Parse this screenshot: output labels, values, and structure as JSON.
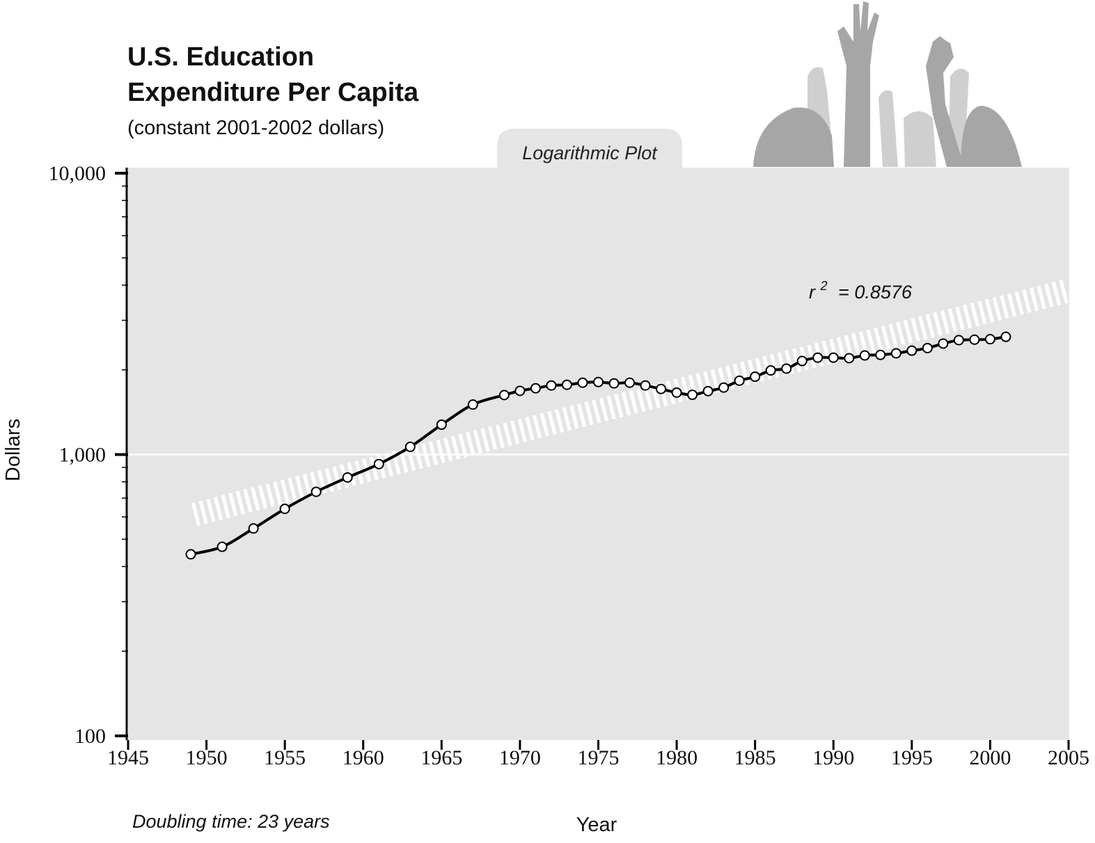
{
  "chart_data": {
    "type": "line",
    "title_line1": "U.S. Education",
    "title_line2": "Expenditure Per Capita",
    "subtitle": "(constant 2001-2002 dollars)",
    "plot_tab_label": "Logarithmic Plot",
    "xlabel": "Year",
    "ylabel": "Dollars",
    "y_scale": "log",
    "xlim": [
      1945,
      2005
    ],
    "ylim": [
      100,
      10000
    ],
    "x_ticks": [
      1945,
      1950,
      1955,
      1960,
      1965,
      1970,
      1975,
      1980,
      1985,
      1990,
      1995,
      2000,
      2005
    ],
    "x_tick_labels": [
      "1945",
      "1950",
      "1955",
      "1960",
      "1965",
      "1970",
      "1975",
      "1980",
      "1985",
      "1990",
      "1995",
      "2000",
      "2005"
    ],
    "y_ticks": [
      100,
      1000,
      10000
    ],
    "y_tick_labels": [
      "100",
      "1,000",
      "10,000"
    ],
    "gridline_at": 1000,
    "annotation": "= 0.8576",
    "annotation_prefix": "r",
    "annotation_sup": "2",
    "footnote": "Doubling time: 23 years",
    "colors": {
      "plot_background": "#e5e5e5",
      "line": "#000000",
      "marker_fill": "#ffffff",
      "trend": "#ffffff",
      "decoration": "#a6a6a6"
    },
    "series": [
      {
        "x": [
          1949,
          1951,
          1953,
          1955,
          1957,
          1959,
          1961,
          1963,
          1965,
          1967,
          1969,
          1970,
          1971,
          1972,
          1973,
          1974,
          1975,
          1976,
          1977,
          1978,
          1979,
          1980,
          1981,
          1982,
          1983,
          1984,
          1985,
          1986,
          1987,
          1988,
          1989,
          1990,
          1991,
          1992,
          1993,
          1994,
          1995,
          1996,
          1997,
          1998,
          1999,
          2000,
          2001
        ],
        "values": [
          442,
          470,
          546,
          641,
          737,
          829,
          925,
          1065,
          1277,
          1505,
          1627,
          1684,
          1720,
          1760,
          1770,
          1800,
          1810,
          1790,
          1800,
          1760,
          1710,
          1660,
          1630,
          1680,
          1730,
          1830,
          1890,
          1990,
          2020,
          2150,
          2210,
          2210,
          2200,
          2250,
          2260,
          2290,
          2340,
          2390,
          2480,
          2550,
          2560,
          2570,
          2620
        ]
      }
    ],
    "trendline": {
      "x": [
        1949,
        2005
      ],
      "values": [
        612,
        3830
      ]
    }
  }
}
